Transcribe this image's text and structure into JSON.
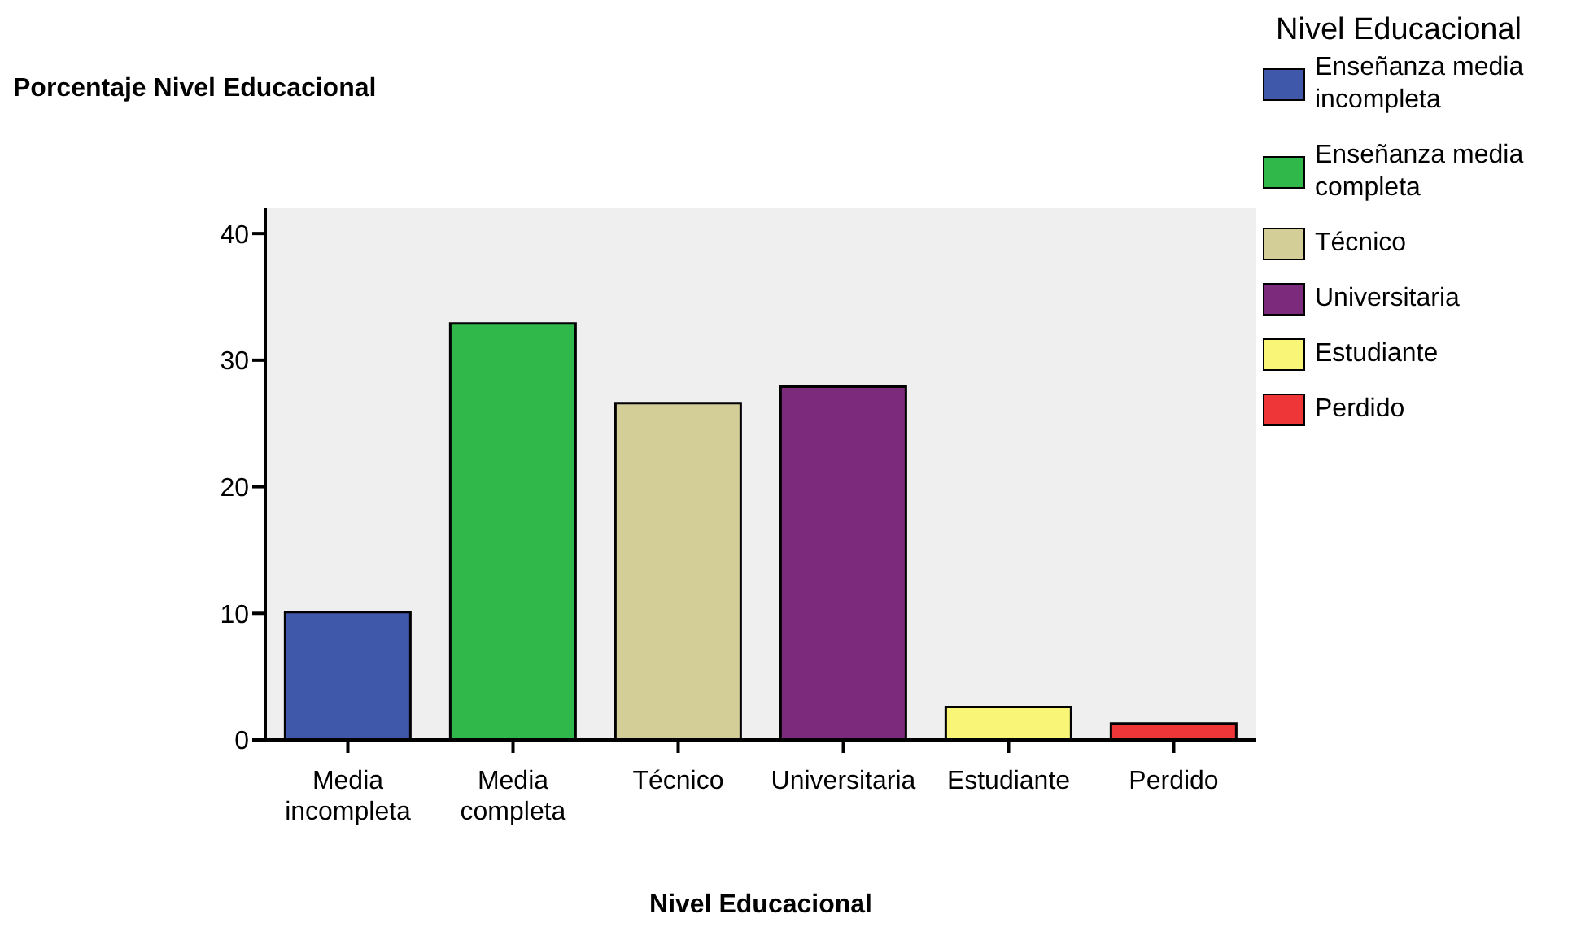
{
  "chart_data": {
    "type": "bar",
    "title": "Porcentaje Nivel Educacional",
    "xlabel": "Nivel Educacional",
    "legend_title": "Nivel Educacional",
    "legend": "right",
    "stacked": true,
    "grid": false,
    "categories": [
      "Media incompleta",
      "Media completa",
      "Técnico",
      "Universitaria",
      "Estudiante",
      "Perdido"
    ],
    "series": [
      {
        "name": "Enseñanza media incompleta",
        "color": "#3f58a9",
        "values": [
          10.1,
          null,
          null,
          null,
          null,
          null
        ]
      },
      {
        "name": "Enseñanza media completa",
        "color": "#31b84a",
        "values": [
          null,
          32.9,
          null,
          null,
          null,
          null
        ]
      },
      {
        "name": "Técnico",
        "color": "#d3ce98",
        "values": [
          null,
          null,
          26.6,
          null,
          null,
          null
        ]
      },
      {
        "name": "Universitaria",
        "color": "#7c2a7c",
        "values": [
          null,
          null,
          null,
          27.9,
          null,
          null
        ]
      },
      {
        "name": "Estudiante",
        "color": "#f9f577",
        "values": [
          null,
          null,
          null,
          null,
          2.6,
          null
        ]
      },
      {
        "name": "Perdido",
        "color": "#ee3537",
        "values": [
          null,
          null,
          null,
          null,
          null,
          1.3
        ]
      }
    ],
    "ylim": [
      0,
      42
    ],
    "yticks": [
      0,
      10,
      20,
      30,
      40
    ]
  }
}
